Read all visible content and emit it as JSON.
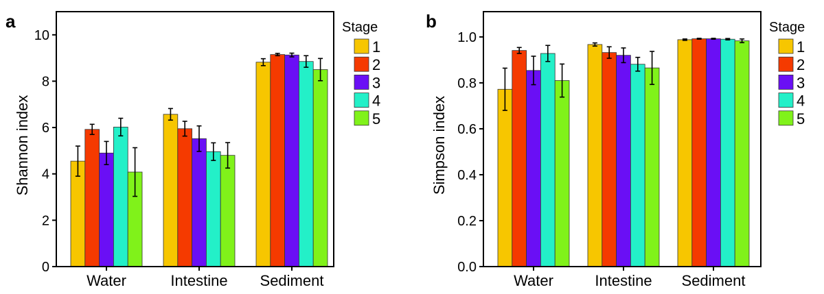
{
  "chart_data": [
    {
      "type": "bar",
      "panel": "a",
      "ylabel": "Shannon index",
      "xlabel": "",
      "ylim": [
        0,
        11
      ],
      "yticks": [
        0,
        2,
        4,
        6,
        8,
        10
      ],
      "ytick_labels": [
        "0",
        "2",
        "4",
        "6",
        "8",
        "10"
      ],
      "categories": [
        "Water",
        "Intestine",
        "Sediment"
      ],
      "legend_title": "Stage",
      "series": [
        {
          "name": "1",
          "color": "#F7C600",
          "values": [
            4.55,
            6.57,
            8.82
          ],
          "errors": [
            0.65,
            0.25,
            0.15
          ]
        },
        {
          "name": "2",
          "color": "#F53A00",
          "values": [
            5.92,
            5.95,
            9.15
          ],
          "errors": [
            0.22,
            0.32,
            0.05
          ]
        },
        {
          "name": "3",
          "color": "#6A0FF5",
          "values": [
            4.9,
            5.52,
            9.13
          ],
          "errors": [
            0.5,
            0.55,
            0.08
          ]
        },
        {
          "name": "4",
          "color": "#23F0C8",
          "values": [
            6.02,
            4.96,
            8.85
          ],
          "errors": [
            0.38,
            0.38,
            0.25
          ]
        },
        {
          "name": "5",
          "color": "#80F21A",
          "values": [
            4.08,
            4.8,
            8.5
          ],
          "errors": [
            1.05,
            0.55,
            0.48
          ]
        }
      ]
    },
    {
      "type": "bar",
      "panel": "b",
      "ylabel": "Simpson index",
      "xlabel": "",
      "ylim": [
        0,
        1.11
      ],
      "yticks": [
        0,
        0.2,
        0.4,
        0.6,
        0.8,
        1.0
      ],
      "ytick_labels": [
        "0.0",
        "0.2",
        "0.4",
        "0.6",
        "0.8",
        "1.0"
      ],
      "categories": [
        "Water",
        "Intestine",
        "Sediment"
      ],
      "legend_title": "Stage",
      "series": [
        {
          "name": "1",
          "color": "#F7C600",
          "values": [
            0.772,
            0.967,
            0.988
          ],
          "errors": [
            0.092,
            0.007,
            0.003
          ]
        },
        {
          "name": "2",
          "color": "#F53A00",
          "values": [
            0.941,
            0.932,
            0.992
          ],
          "errors": [
            0.013,
            0.025,
            0.002
          ]
        },
        {
          "name": "3",
          "color": "#6A0FF5",
          "values": [
            0.854,
            0.92,
            0.992
          ],
          "errors": [
            0.062,
            0.032,
            0.002
          ]
        },
        {
          "name": "4",
          "color": "#23F0C8",
          "values": [
            0.928,
            0.881,
            0.99
          ],
          "errors": [
            0.035,
            0.03,
            0.003
          ]
        },
        {
          "name": "5",
          "color": "#80F21A",
          "values": [
            0.81,
            0.865,
            0.983
          ],
          "errors": [
            0.072,
            0.072,
            0.008
          ]
        }
      ]
    }
  ]
}
